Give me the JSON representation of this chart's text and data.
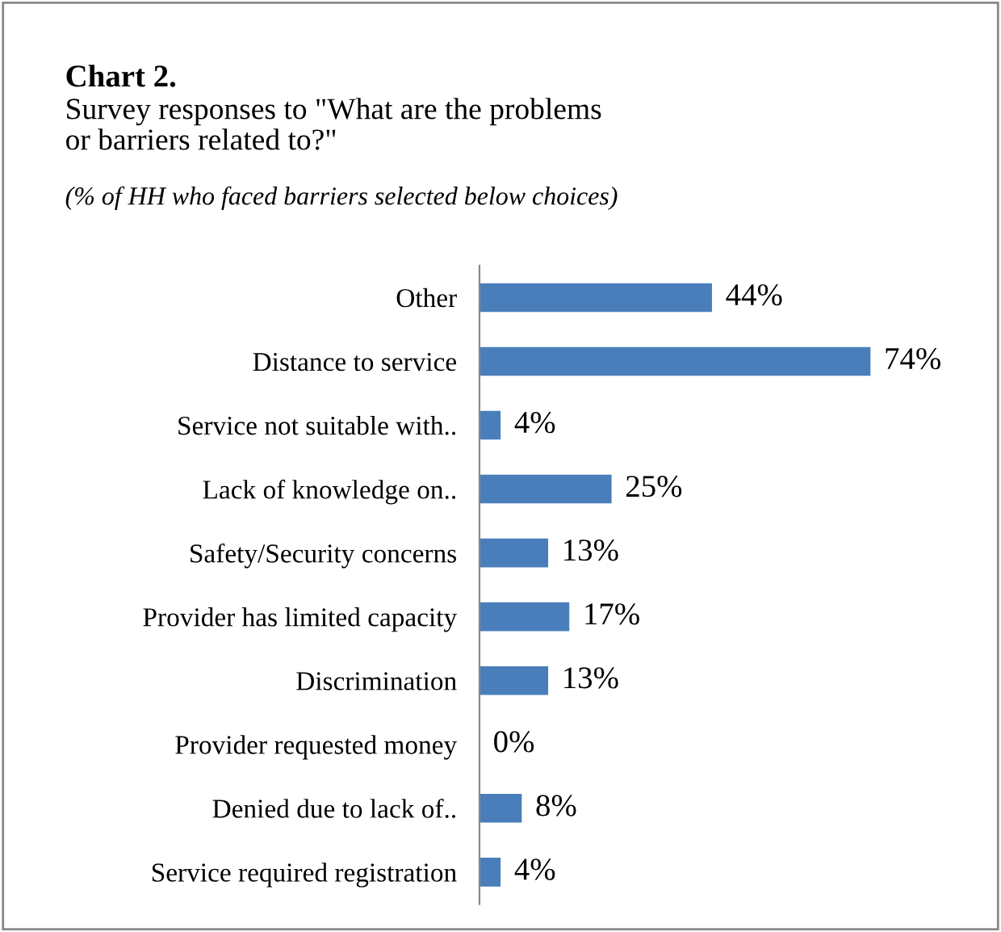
{
  "chart_data": {
    "type": "bar",
    "orientation": "horizontal",
    "title": "Chart 2.",
    "subtitle": "Survey responses to \"What are the problems\nor barriers related to?\"",
    "annotations": [
      "(% of HH who faced barriers selected below choices)"
    ],
    "categories": [
      "Other",
      "Distance to service",
      "Service not suitable with..",
      "Lack of knowledge on..",
      "Safety/Security concerns",
      "Provider has limited capacity",
      "Discrimination",
      "Provider requested money",
      "Denied due to lack of..",
      "Service required registration"
    ],
    "values": [
      44,
      74,
      4,
      25,
      13,
      17,
      13,
      0,
      8,
      4
    ],
    "value_labels": [
      "44%",
      "74%",
      "4%",
      "25%",
      "13%",
      "17%",
      "13%",
      "0%",
      "8%",
      "4%"
    ],
    "color": "#4a7ebb",
    "grid": false,
    "legend": false
  }
}
